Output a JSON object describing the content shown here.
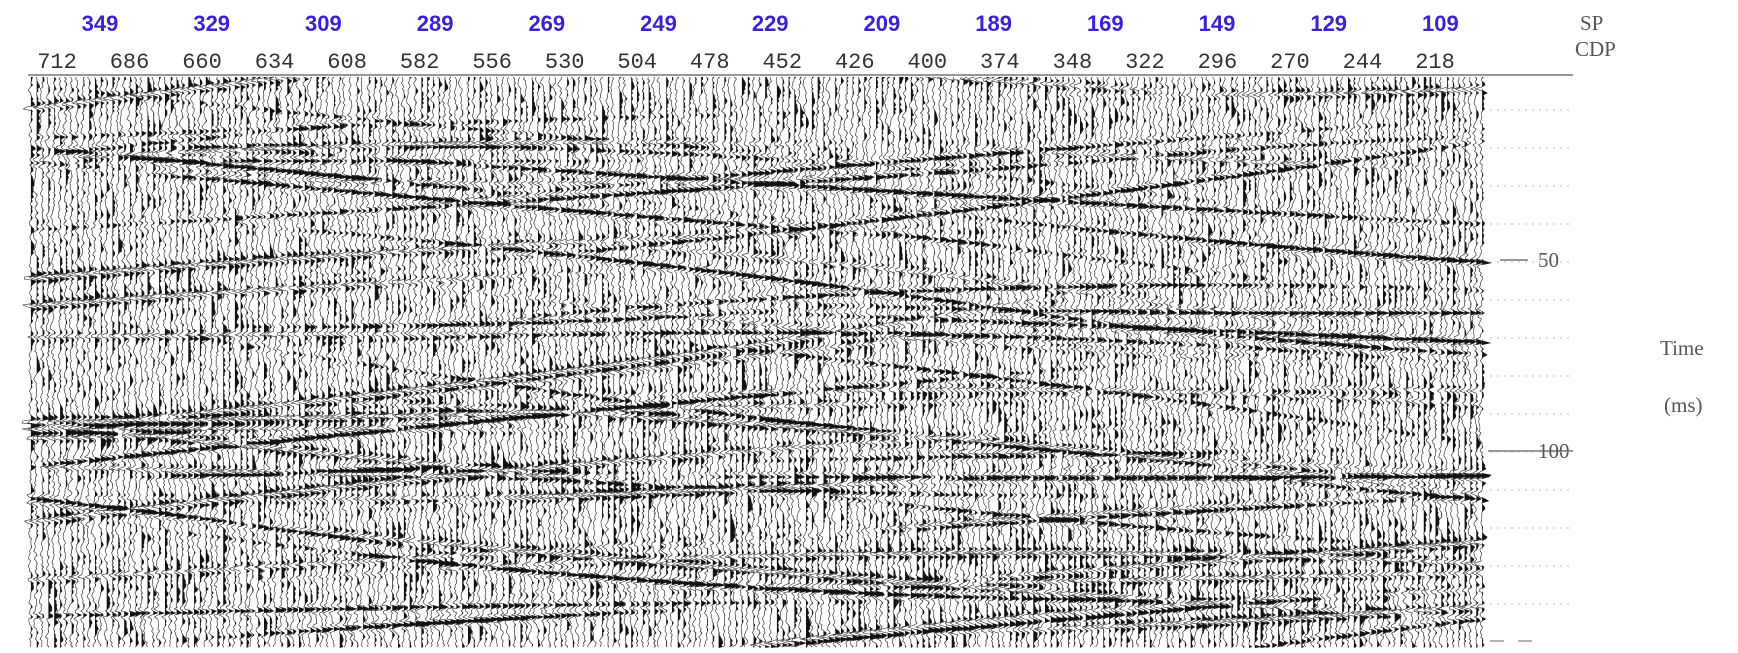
{
  "header": {
    "sp_label": "SP",
    "cdp_label": "CDP",
    "sp": [
      "349",
      "329",
      "309",
      "289",
      "269",
      "249",
      "229",
      "209",
      "189",
      "169",
      "149",
      "129",
      "109"
    ],
    "cdp": [
      "712",
      "686",
      "660",
      "634",
      "608",
      "582",
      "556",
      "530",
      "504",
      "478",
      "452",
      "426",
      "400",
      "374",
      "348",
      "322",
      "296",
      "270",
      "244",
      "218"
    ]
  },
  "time_axis": {
    "label_line_1": "Time",
    "label_line_2": "(ms)",
    "ticks": [
      50,
      100
    ]
  }
}
